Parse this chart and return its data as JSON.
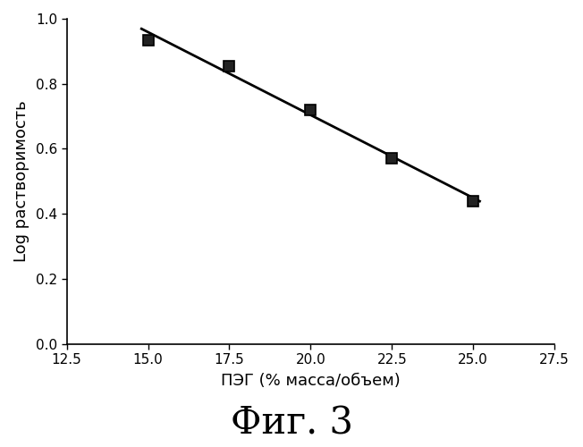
{
  "x_data": [
    15.0,
    17.5,
    20.0,
    22.5,
    25.0
  ],
  "y_data": [
    0.935,
    0.855,
    0.72,
    0.57,
    0.44
  ],
  "xlabel": "ПЭГ (% масса/объем)",
  "ylabel": "Log растворимость",
  "caption": "Фиг. 3",
  "xlim": [
    12.5,
    27.5
  ],
  "ylim": [
    0.0,
    1.0
  ],
  "xticks": [
    12.5,
    15.0,
    17.5,
    20.0,
    22.5,
    25.0,
    27.5
  ],
  "yticks": [
    0.0,
    0.2,
    0.4,
    0.6,
    0.8,
    1.0
  ],
  "line_color": "#000000",
  "marker_color": "#222222",
  "background_color": "#ffffff",
  "axis_label_fontsize": 13,
  "tick_fontsize": 11,
  "caption_fontsize": 30,
  "line_x_start": 14.8,
  "line_x_end": 25.2
}
